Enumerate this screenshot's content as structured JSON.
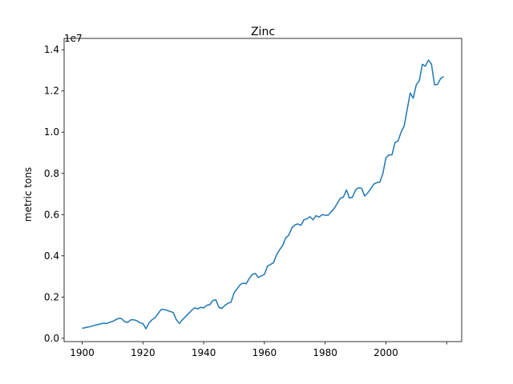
{
  "chart_data": {
    "type": "line",
    "title": "Zinc",
    "ylabel": "metric tons",
    "y_offset_label": "1e7",
    "x": [
      1900,
      1901,
      1902,
      1903,
      1904,
      1905,
      1906,
      1907,
      1908,
      1909,
      1910,
      1911,
      1912,
      1913,
      1914,
      1915,
      1916,
      1917,
      1918,
      1919,
      1920,
      1921,
      1922,
      1923,
      1924,
      1925,
      1926,
      1927,
      1928,
      1929,
      1930,
      1931,
      1932,
      1933,
      1934,
      1935,
      1936,
      1937,
      1938,
      1939,
      1940,
      1941,
      1942,
      1943,
      1944,
      1945,
      1946,
      1947,
      1948,
      1949,
      1950,
      1951,
      1952,
      1953,
      1954,
      1955,
      1956,
      1957,
      1958,
      1959,
      1960,
      1961,
      1962,
      1963,
      1964,
      1965,
      1966,
      1967,
      1968,
      1969,
      1970,
      1971,
      1972,
      1973,
      1974,
      1975,
      1976,
      1977,
      1978,
      1979,
      1980,
      1981,
      1982,
      1983,
      1984,
      1985,
      1986,
      1987,
      1988,
      1989,
      1990,
      1991,
      1992,
      1993,
      1994,
      1995,
      1996,
      1997,
      1998,
      1999,
      2000,
      2001,
      2002,
      2003,
      2004,
      2005,
      2006,
      2007,
      2008,
      2009,
      2010,
      2011,
      2012,
      2013,
      2014,
      2015,
      2016,
      2017,
      2018,
      2019
    ],
    "series": [
      {
        "color": "#1f77b4",
        "values": [
          0.048,
          0.052,
          0.055,
          0.058,
          0.063,
          0.066,
          0.07,
          0.073,
          0.072,
          0.077,
          0.082,
          0.09,
          0.097,
          0.095,
          0.08,
          0.077,
          0.09,
          0.09,
          0.085,
          0.075,
          0.072,
          0.046,
          0.075,
          0.09,
          0.1,
          0.12,
          0.14,
          0.14,
          0.135,
          0.13,
          0.125,
          0.09,
          0.072,
          0.09,
          0.105,
          0.12,
          0.135,
          0.148,
          0.143,
          0.15,
          0.148,
          0.16,
          0.163,
          0.183,
          0.187,
          0.15,
          0.145,
          0.16,
          0.17,
          0.175,
          0.22,
          0.24,
          0.26,
          0.268,
          0.265,
          0.29,
          0.31,
          0.315,
          0.295,
          0.303,
          0.31,
          0.35,
          0.358,
          0.367,
          0.405,
          0.43,
          0.45,
          0.487,
          0.5,
          0.535,
          0.55,
          0.555,
          0.548,
          0.575,
          0.58,
          0.59,
          0.575,
          0.595,
          0.588,
          0.6,
          0.597,
          0.597,
          0.615,
          0.63,
          0.655,
          0.68,
          0.685,
          0.72,
          0.68,
          0.685,
          0.72,
          0.73,
          0.728,
          0.69,
          0.705,
          0.725,
          0.748,
          0.755,
          0.758,
          0.8,
          0.875,
          0.89,
          0.89,
          0.95,
          0.958,
          1.0,
          1.03,
          1.11,
          1.19,
          1.165,
          1.23,
          1.25,
          1.33,
          1.32,
          1.35,
          1.33,
          1.23,
          1.232,
          1.26,
          1.27
        ]
      }
    ],
    "xlim": [
      1894.05,
      2024.95
    ],
    "xticks": [
      1900,
      1920,
      1940,
      1960,
      1980,
      2000,
      {
        "value": 2020
      }
    ],
    "ylim": [
      -0.016,
      1.455
    ],
    "yticks": [
      {
        "value": 0,
        "label": "0.0"
      },
      0.2,
      0.4,
      0.6,
      0.8,
      {
        "value": 1,
        "label": "1.0"
      },
      1.2,
      1.4
    ]
  }
}
